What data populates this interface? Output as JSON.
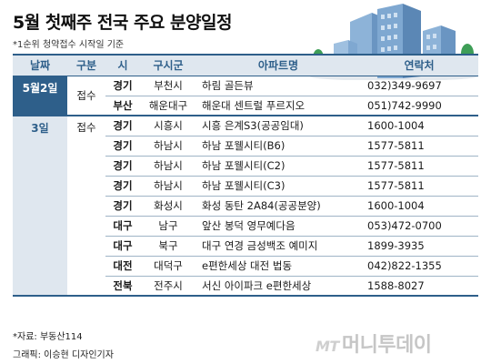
{
  "title": "5월 첫째주 전국 주요 분양일정",
  "note": "*1순위 청약접수 시작일 기준",
  "headers": [
    "날짜",
    "구분",
    "시",
    "구시군",
    "아파트명",
    "연락처"
  ],
  "dates": [
    "5월2일",
    "3일"
  ],
  "rows": [
    {
      "type": "접수",
      "city": "경기",
      "district": "부천시",
      "apartment": "하림 골든뷰",
      "phone": "032)349-9697"
    },
    {
      "type": "",
      "city": "부산",
      "district": "해운대구",
      "apartment": "해운대 센트럴 푸르지오",
      "phone": "051)742-9990"
    },
    {
      "type": "접수",
      "city": "경기",
      "district": "시흥시",
      "apartment": "시흥 은계S3(공공임대)",
      "phone": "1600-1004"
    },
    {
      "type": "",
      "city": "경기",
      "district": "하남시",
      "apartment": "하남 포웰시티(B6)",
      "phone": "1577-5811"
    },
    {
      "type": "",
      "city": "경기",
      "district": "하남시",
      "apartment": "하남 포웰시티(C2)",
      "phone": "1577-5811"
    },
    {
      "type": "",
      "city": "경기",
      "district": "하남시",
      "apartment": "하남 포웰시티(C3)",
      "phone": "1577-5811"
    },
    {
      "type": "",
      "city": "경기",
      "district": "화성시",
      "apartment": "화성 동탄 2A84(공공분양)",
      "phone": "1600-1004"
    },
    {
      "type": "",
      "city": "대구",
      "district": "남구",
      "apartment": "앞산 봉덕 영무예다음",
      "phone": "053)472-0700"
    },
    {
      "type": "",
      "city": "대구",
      "district": "북구",
      "apartment": "대구 연경 금성백조 예미지",
      "phone": "1899-3935"
    },
    {
      "type": "",
      "city": "대전",
      "district": "대덕구",
      "apartment": "e편한세상 대전 법동",
      "phone": "042)822-1355"
    },
    {
      "type": "",
      "city": "전북",
      "district": "전주시",
      "apartment": "서신 아이파크 e편한세상",
      "phone": "1588-8027"
    }
  ],
  "source": "*자료: 부동산114",
  "credit": "그래픽: 이승현 디자인기자",
  "watermark": {
    "mt": "MT",
    "text": "머니투데이"
  },
  "colors": {
    "accent": "#2e5f8a",
    "header_bg": "#dfe7ef",
    "building": "#5b87b5",
    "tree": "#3e9e57"
  }
}
